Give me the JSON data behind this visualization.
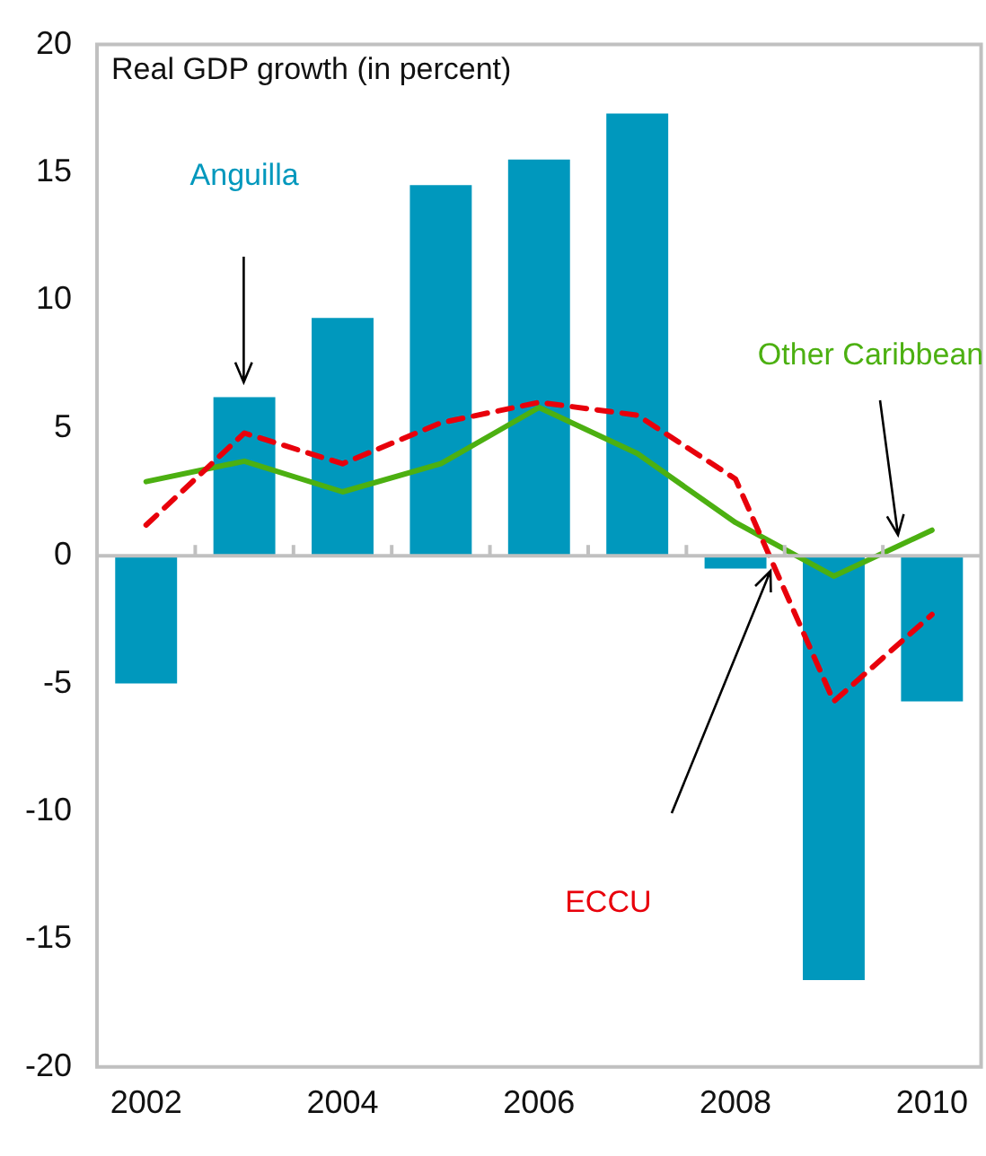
{
  "chart_data": {
    "type": "bar",
    "title": "Real GDP growth (in percent)",
    "categories": [
      "2002",
      null,
      "2004",
      null,
      "2006",
      null,
      "2008",
      null,
      "2010"
    ],
    "series": [
      {
        "name": "Anguilla",
        "color": "#0098bd",
        "values": [
          -5.0,
          6.2,
          9.3,
          14.5,
          15.5,
          17.3,
          -0.5,
          -16.6,
          -5.7
        ]
      },
      {
        "name": "ECCU",
        "type": "line",
        "color": "#e8000b",
        "line_style": "dashed",
        "values": [
          1.2,
          4.8,
          3.6,
          5.2,
          6.0,
          5.5,
          3.0,
          -5.7,
          -2.3
        ]
      },
      {
        "name": "Other Caribbean",
        "type": "line",
        "color": "#4cb011",
        "line_style": "solid",
        "values": [
          2.9,
          3.7,
          2.5,
          3.6,
          5.8,
          4.0,
          1.3,
          -0.8,
          1.0
        ]
      }
    ],
    "ylim": [
      -20,
      20
    ],
    "yticks": [
      -20,
      -15,
      -10,
      -5,
      0,
      5,
      10,
      15,
      20
    ],
    "marker": "none",
    "legend": false
  }
}
